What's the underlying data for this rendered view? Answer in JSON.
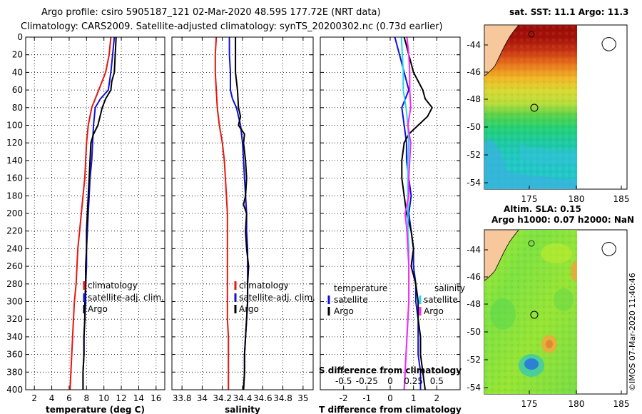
{
  "header": {
    "line1": "Argo profile: csiro 5905187_121 02-Mar-2020 48.59S 177.72E (NRT data)",
    "line2": "Climatology: CARS2009. Satellite-adjusted climatology: synTS_20200302.nc (0.73d earlier)"
  },
  "colors": {
    "climatology": "#e8150f",
    "satellite": "#1010d8",
    "argo": "#000000",
    "salinity_diff": "#ff22ff",
    "salinity_sat": "#22d8ee"
  },
  "chart_data": [
    {
      "id": "temperature",
      "type": "line",
      "xlabel": "temperature (deg C)",
      "ylabel": "depth",
      "xlim": [
        1,
        17
      ],
      "ylim": [
        400,
        0
      ],
      "xticks": [
        2,
        4,
        6,
        8,
        10,
        12,
        14,
        16
      ],
      "yticks": [
        0,
        20,
        40,
        60,
        80,
        100,
        120,
        140,
        160,
        180,
        200,
        220,
        240,
        260,
        280,
        300,
        320,
        340,
        360,
        380,
        400
      ],
      "grid": true,
      "legend": [
        "climatology",
        "satellite-adj. clim.",
        "Argo"
      ],
      "series": [
        {
          "name": "climatology",
          "color": "climatology",
          "points": [
            [
              10.8,
              0
            ],
            [
              10.6,
              20
            ],
            [
              10.2,
              40
            ],
            [
              9.4,
              60
            ],
            [
              8.6,
              80
            ],
            [
              8.2,
              100
            ],
            [
              8.0,
              120
            ],
            [
              7.9,
              140
            ],
            [
              7.8,
              160
            ],
            [
              7.6,
              180
            ],
            [
              7.4,
              200
            ],
            [
              7.2,
              220
            ],
            [
              7.0,
              240
            ],
            [
              6.9,
              260
            ],
            [
              6.8,
              280
            ],
            [
              6.6,
              300
            ],
            [
              6.5,
              320
            ],
            [
              6.4,
              340
            ],
            [
              6.3,
              360
            ],
            [
              6.2,
              380
            ],
            [
              6.1,
              400
            ]
          ]
        },
        {
          "name": "satellite-adj. clim.",
          "color": "satellite",
          "points": [
            [
              11.2,
              0
            ],
            [
              11.0,
              20
            ],
            [
              10.8,
              40
            ],
            [
              10.5,
              60
            ],
            [
              9.6,
              70
            ],
            [
              9.0,
              80
            ],
            [
              8.8,
              100
            ],
            [
              8.7,
              120
            ],
            [
              8.6,
              140
            ],
            [
              8.4,
              160
            ],
            [
              8.3,
              180
            ],
            [
              8.2,
              200
            ],
            [
              8.1,
              220
            ],
            [
              8.0,
              240
            ],
            [
              8.0,
              260
            ],
            [
              7.9,
              280
            ],
            [
              7.9,
              300
            ],
            [
              7.8,
              320
            ],
            [
              7.7,
              340
            ],
            [
              7.7,
              360
            ],
            [
              7.6,
              380
            ],
            [
              7.6,
              400
            ]
          ]
        },
        {
          "name": "Argo",
          "color": "argo",
          "points": [
            [
              11.4,
              0
            ],
            [
              11.3,
              20
            ],
            [
              11.2,
              40
            ],
            [
              10.9,
              50
            ],
            [
              10.8,
              60
            ],
            [
              10.2,
              70
            ],
            [
              9.8,
              80
            ],
            [
              9.3,
              100
            ],
            [
              8.8,
              110
            ],
            [
              8.5,
              120
            ],
            [
              8.4,
              140
            ],
            [
              8.3,
              160
            ],
            [
              8.2,
              180
            ],
            [
              8.1,
              200
            ],
            [
              8.0,
              220
            ],
            [
              8.0,
              240
            ],
            [
              7.9,
              260
            ],
            [
              7.9,
              280
            ],
            [
              7.8,
              300
            ],
            [
              7.8,
              320
            ],
            [
              7.7,
              340
            ],
            [
              7.7,
              360
            ],
            [
              7.6,
              380
            ],
            [
              7.6,
              400
            ]
          ]
        }
      ]
    },
    {
      "id": "salinity",
      "type": "line",
      "xlabel": "salinity",
      "xlim": [
        33.7,
        35.1
      ],
      "ylim": [
        400,
        0
      ],
      "xticks": [
        33.8,
        34,
        34.2,
        34.4,
        34.6,
        34.8,
        35
      ],
      "yticks": [
        0,
        20,
        40,
        60,
        80,
        100,
        120,
        140,
        160,
        180,
        200,
        220,
        240,
        260,
        280,
        300,
        320,
        340,
        360,
        380,
        400
      ],
      "grid": true,
      "legend": [
        "climatology",
        "satellite-adj. clim.",
        "Argo"
      ],
      "series": [
        {
          "name": "climatology",
          "color": "climatology",
          "points": [
            [
              34.14,
              0
            ],
            [
              34.13,
              20
            ],
            [
              34.13,
              40
            ],
            [
              34.14,
              60
            ],
            [
              34.15,
              80
            ],
            [
              34.17,
              100
            ],
            [
              34.2,
              120
            ],
            [
              34.22,
              140
            ],
            [
              34.23,
              160
            ],
            [
              34.24,
              180
            ],
            [
              34.25,
              200
            ],
            [
              34.25,
              220
            ],
            [
              34.25,
              240
            ],
            [
              34.25,
              260
            ],
            [
              34.25,
              280
            ],
            [
              34.25,
              300
            ],
            [
              34.25,
              320
            ],
            [
              34.26,
              340
            ],
            [
              34.26,
              360
            ],
            [
              34.26,
              380
            ],
            [
              34.26,
              400
            ]
          ]
        },
        {
          "name": "satellite-adj. clim.",
          "color": "satellite",
          "points": [
            [
              34.27,
              0
            ],
            [
              34.27,
              20
            ],
            [
              34.28,
              40
            ],
            [
              34.28,
              60
            ],
            [
              34.3,
              70
            ],
            [
              34.34,
              80
            ],
            [
              34.38,
              100
            ],
            [
              34.4,
              120
            ],
            [
              34.41,
              140
            ],
            [
              34.42,
              160
            ],
            [
              34.43,
              180
            ],
            [
              34.44,
              200
            ],
            [
              34.44,
              220
            ],
            [
              34.45,
              240
            ],
            [
              34.45,
              260
            ],
            [
              34.45,
              280
            ],
            [
              34.45,
              300
            ],
            [
              34.44,
              320
            ],
            [
              34.43,
              340
            ],
            [
              34.42,
              360
            ],
            [
              34.42,
              380
            ],
            [
              34.41,
              400
            ]
          ]
        },
        {
          "name": "Argo",
          "color": "argo",
          "points": [
            [
              34.33,
              0
            ],
            [
              34.33,
              20
            ],
            [
              34.33,
              40
            ],
            [
              34.35,
              60
            ],
            [
              34.36,
              80
            ],
            [
              34.38,
              90
            ],
            [
              34.36,
              100
            ],
            [
              34.42,
              110
            ],
            [
              34.41,
              120
            ],
            [
              34.43,
              140
            ],
            [
              34.44,
              160
            ],
            [
              34.43,
              180
            ],
            [
              34.41,
              190
            ],
            [
              34.44,
              200
            ],
            [
              34.43,
              220
            ],
            [
              34.44,
              240
            ],
            [
              34.46,
              260
            ],
            [
              34.45,
              280
            ],
            [
              34.45,
              300
            ],
            [
              34.44,
              320
            ],
            [
              34.43,
              340
            ],
            [
              34.42,
              360
            ],
            [
              34.42,
              380
            ],
            [
              34.41,
              400
            ]
          ]
        }
      ]
    },
    {
      "id": "difference",
      "type": "line",
      "xlabel": "T difference from climatology",
      "top_xlabel": "S difference from climatology",
      "xlim": [
        -3,
        3
      ],
      "top_xlim": [
        -0.75,
        0.75
      ],
      "ylim": [
        400,
        0
      ],
      "xticks": [
        -2,
        -1,
        0,
        1,
        2
      ],
      "top_xticks": [
        "-0.5",
        "-0.25",
        "0",
        "0.25",
        "0.5"
      ],
      "top_xtick_values": [
        -0.5,
        -0.25,
        0,
        0.25,
        0.5
      ],
      "yticks": [
        0,
        20,
        40,
        60,
        80,
        100,
        120,
        140,
        160,
        180,
        200,
        220,
        240,
        260,
        280,
        300,
        320,
        340,
        360,
        380,
        400
      ],
      "grid": true,
      "legend_left_title": "temperature",
      "legend_right_title": "salinity",
      "legend": [
        "satellite",
        "Argo"
      ],
      "series": [
        {
          "name": "temperature satellite",
          "color": "satellite",
          "axis": "bottom",
          "points": [
            [
              0.2,
              0
            ],
            [
              0.4,
              20
            ],
            [
              0.6,
              40
            ],
            [
              0.8,
              60
            ],
            [
              0.5,
              80
            ],
            [
              0.6,
              100
            ],
            [
              0.7,
              120
            ],
            [
              0.7,
              140
            ],
            [
              0.8,
              160
            ],
            [
              0.9,
              180
            ],
            [
              0.8,
              200
            ],
            [
              0.9,
              220
            ],
            [
              1.0,
              240
            ],
            [
              1.0,
              260
            ],
            [
              1.1,
              280
            ],
            [
              1.1,
              300
            ],
            [
              1.2,
              320
            ],
            [
              1.2,
              340
            ],
            [
              1.2,
              360
            ],
            [
              1.3,
              380
            ],
            [
              1.3,
              400
            ]
          ]
        },
        {
          "name": "temperature Argo",
          "color": "argo",
          "axis": "bottom",
          "points": [
            [
              0.6,
              0
            ],
            [
              0.7,
              10
            ],
            [
              0.8,
              20
            ],
            [
              1.0,
              40
            ],
            [
              1.4,
              60
            ],
            [
              1.5,
              70
            ],
            [
              1.8,
              80
            ],
            [
              1.6,
              90
            ],
            [
              1.2,
              100
            ],
            [
              0.8,
              110
            ],
            [
              0.6,
              120
            ],
            [
              0.5,
              140
            ],
            [
              0.5,
              160
            ],
            [
              0.6,
              180
            ],
            [
              0.7,
              200
            ],
            [
              0.9,
              220
            ],
            [
              1.0,
              240
            ],
            [
              0.9,
              260
            ],
            [
              1.1,
              280
            ],
            [
              1.2,
              300
            ],
            [
              1.2,
              320
            ],
            [
              1.3,
              340
            ],
            [
              1.3,
              360
            ],
            [
              1.4,
              380
            ],
            [
              1.5,
              400
            ]
          ]
        },
        {
          "name": "salinity satellite",
          "color": "salinity_sat",
          "axis": "top",
          "points": [
            [
              0.12,
              0
            ],
            [
              0.13,
              20
            ],
            [
              0.14,
              40
            ],
            [
              0.14,
              60
            ],
            [
              0.17,
              80
            ],
            [
              0.19,
              100
            ],
            [
              0.2,
              120
            ],
            [
              0.19,
              140
            ],
            [
              0.19,
              160
            ],
            [
              0.19,
              180
            ],
            [
              0.19,
              200
            ],
            [
              0.19,
              220
            ],
            [
              0.2,
              240
            ],
            [
              0.2,
              260
            ],
            [
              0.2,
              280
            ],
            [
              0.2,
              300
            ],
            [
              0.19,
              320
            ],
            [
              0.18,
              340
            ],
            [
              0.17,
              360
            ],
            [
              0.16,
              380
            ],
            [
              0.15,
              400
            ]
          ]
        },
        {
          "name": "salinity Argo",
          "color": "salinity_diff",
          "axis": "top",
          "points": [
            [
              0.18,
              0
            ],
            [
              0.2,
              20
            ],
            [
              0.21,
              40
            ],
            [
              0.21,
              60
            ],
            [
              0.22,
              80
            ],
            [
              0.19,
              100
            ],
            [
              0.22,
              120
            ],
            [
              0.21,
              140
            ],
            [
              0.2,
              160
            ],
            [
              0.2,
              180
            ],
            [
              0.16,
              200
            ],
            [
              0.18,
              220
            ],
            [
              0.19,
              240
            ],
            [
              0.2,
              260
            ],
            [
              0.2,
              280
            ],
            [
              0.2,
              300
            ],
            [
              0.19,
              320
            ],
            [
              0.18,
              340
            ],
            [
              0.17,
              360
            ],
            [
              0.16,
              380
            ],
            [
              0.15,
              400
            ]
          ]
        }
      ]
    },
    {
      "id": "sst_map",
      "type": "heatmap",
      "title": "sat. SST: 11.1 Argo: 11.3",
      "xticks": [
        "175",
        "180",
        "185"
      ],
      "yticks": [
        "-44",
        "-46",
        "-48",
        "-50",
        "-52",
        "-54"
      ],
      "profile_marker": [
        177.72,
        -48.59
      ]
    },
    {
      "id": "sla_map",
      "type": "heatmap",
      "title": "Altim. SLA: 0.15",
      "subtitle": "Argo h1000: 0.07 h2000: NaN",
      "xticks": [
        "175",
        "180",
        "185"
      ],
      "yticks": [
        "-44",
        "-46",
        "-48",
        "-50",
        "-52",
        "-54"
      ],
      "profile_marker": [
        177.72,
        -48.59
      ]
    }
  ],
  "footer": {
    "credit": "©IMOS 07-Mar-2020 11:40:46"
  }
}
